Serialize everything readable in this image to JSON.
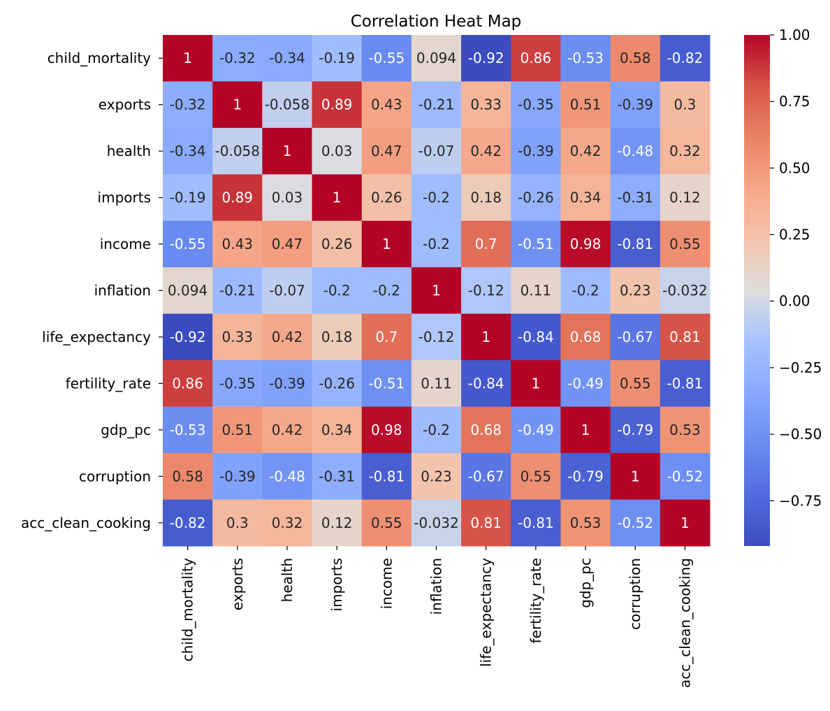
{
  "chart_data": {
    "type": "heatmap",
    "title": "Correlation Heat Map",
    "xlabel": "",
    "ylabel": "",
    "labels": [
      "child_mortality",
      "exports",
      "health",
      "imports",
      "income",
      "inflation",
      "life_expectancy",
      "fertility_rate",
      "gdp_pc",
      "corruption",
      "acc_clean_cooking"
    ],
    "matrix": [
      [
        1,
        -0.32,
        -0.34,
        -0.19,
        -0.55,
        0.094,
        -0.92,
        0.86,
        -0.53,
        0.58,
        -0.82
      ],
      [
        -0.32,
        1,
        -0.058,
        0.89,
        0.43,
        -0.21,
        0.33,
        -0.35,
        0.51,
        -0.39,
        0.3
      ],
      [
        -0.34,
        -0.058,
        1,
        0.03,
        0.47,
        -0.07,
        0.42,
        -0.39,
        0.42,
        -0.48,
        0.32
      ],
      [
        -0.19,
        0.89,
        0.03,
        1,
        0.26,
        -0.2,
        0.18,
        -0.26,
        0.34,
        -0.31,
        0.12
      ],
      [
        -0.55,
        0.43,
        0.47,
        0.26,
        1,
        -0.2,
        0.7,
        -0.51,
        0.98,
        -0.81,
        0.55
      ],
      [
        0.094,
        -0.21,
        -0.07,
        -0.2,
        -0.2,
        1,
        -0.12,
        0.11,
        -0.2,
        0.23,
        -0.032
      ],
      [
        -0.92,
        0.33,
        0.42,
        0.18,
        0.7,
        -0.12,
        1,
        -0.84,
        0.68,
        -0.67,
        0.81
      ],
      [
        0.86,
        -0.35,
        -0.39,
        -0.26,
        -0.51,
        0.11,
        -0.84,
        1,
        -0.49,
        0.55,
        -0.81
      ],
      [
        -0.53,
        0.51,
        0.42,
        0.34,
        0.98,
        -0.2,
        0.68,
        -0.49,
        1,
        -0.79,
        0.53
      ],
      [
        0.58,
        -0.39,
        -0.48,
        -0.31,
        -0.81,
        0.23,
        -0.67,
        0.55,
        -0.79,
        1,
        -0.52
      ],
      [
        -0.82,
        0.3,
        0.32,
        0.12,
        0.55,
        -0.032,
        0.81,
        -0.81,
        0.53,
        -0.52,
        1
      ]
    ],
    "colormap": "coolwarm",
    "vmin": -0.92,
    "vmax": 1.0,
    "colorbar": {
      "ticks": [
        1.0,
        0.75,
        0.5,
        0.25,
        0.0,
        -0.25,
        -0.5,
        -0.75
      ],
      "tick_labels": [
        "1.00",
        "0.75",
        "0.50",
        "0.25",
        "0.00",
        "−0.25",
        "−0.50",
        "−0.75"
      ]
    }
  }
}
